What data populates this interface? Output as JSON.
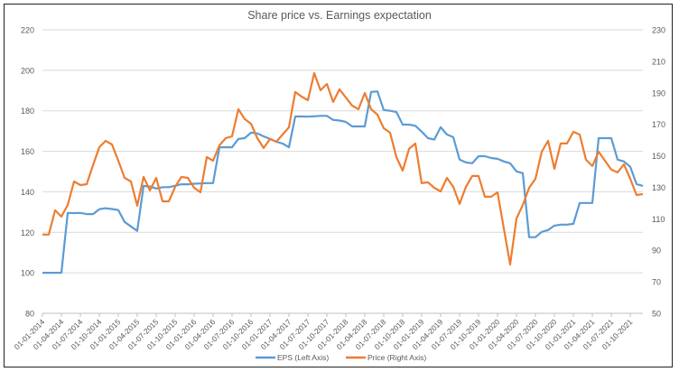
{
  "chart_data": {
    "type": "line",
    "title": "Share price vs. Earnings expectation",
    "left_axis": {
      "min": 80,
      "max": 220,
      "step": 20,
      "ticks": [
        "80",
        "100",
        "120",
        "140",
        "160",
        "180",
        "200",
        "220"
      ]
    },
    "right_axis": {
      "min": 50,
      "max": 230,
      "step": 20,
      "ticks": [
        "50",
        "70",
        "90",
        "110",
        "130",
        "150",
        "170",
        "190",
        "210",
        "230"
      ]
    },
    "grid": true,
    "legend_position": "bottom",
    "x_ticks": [
      "01-01-2014",
      "01-04-2014",
      "01-07-2014",
      "01-10-2014",
      "01-01-2015",
      "01-04-2015",
      "01-07-2015",
      "01-10-2015",
      "01-01-2016",
      "01-04-2016",
      "01-07-2016",
      "01-10-2016",
      "01-01-2017",
      "01-04-2017",
      "01-07-2017",
      "01-10-2017",
      "01-01-2018",
      "01-04-2018",
      "01-07-2018",
      "01-10-2018",
      "01-01-2019",
      "01-04-2019",
      "01-07-2019",
      "01-10-2019",
      "01-01-2020",
      "01-04-2020",
      "01-07-2020",
      "01-10-2020",
      "01-01-2021",
      "01-04-2021",
      "01-07-2021",
      "01-10-2021"
    ],
    "x": [
      "01-01-2014",
      "01-02-2014",
      "01-03-2014",
      "01-04-2014",
      "01-05-2014",
      "01-06-2014",
      "01-07-2014",
      "01-08-2014",
      "01-09-2014",
      "01-10-2014",
      "01-11-2014",
      "01-12-2014",
      "01-01-2015",
      "01-02-2015",
      "01-03-2015",
      "01-04-2015",
      "01-05-2015",
      "01-06-2015",
      "01-07-2015",
      "01-08-2015",
      "01-09-2015",
      "01-10-2015",
      "01-11-2015",
      "01-12-2015",
      "01-01-2016",
      "01-02-2016",
      "01-03-2016",
      "01-04-2016",
      "01-05-2016",
      "01-06-2016",
      "01-07-2016",
      "01-08-2016",
      "01-09-2016",
      "01-10-2016",
      "01-11-2016",
      "01-12-2016",
      "01-01-2017",
      "01-02-2017",
      "01-03-2017",
      "01-04-2017",
      "01-05-2017",
      "01-06-2017",
      "01-07-2017",
      "01-08-2017",
      "01-09-2017",
      "01-10-2017",
      "01-11-2017",
      "01-12-2017",
      "01-01-2018",
      "01-02-2018",
      "01-03-2018",
      "01-04-2018",
      "01-05-2018",
      "01-06-2018",
      "01-07-2018",
      "01-08-2018",
      "01-09-2018",
      "01-10-2018",
      "01-11-2018",
      "01-12-2018",
      "01-01-2019",
      "01-02-2019",
      "01-03-2019",
      "01-04-2019",
      "01-05-2019",
      "01-06-2019",
      "01-07-2019",
      "01-08-2019",
      "01-09-2019",
      "01-10-2019",
      "01-11-2019",
      "01-12-2019",
      "01-01-2020",
      "01-02-2020",
      "01-03-2020",
      "01-04-2020",
      "01-05-2020",
      "01-06-2020",
      "01-07-2020",
      "01-08-2020",
      "01-09-2020",
      "01-10-2020",
      "01-11-2020",
      "01-12-2020",
      "01-01-2021",
      "01-02-2021",
      "01-03-2021",
      "01-04-2021",
      "01-05-2021",
      "01-06-2021",
      "01-07-2021",
      "01-08-2021",
      "01-09-2021",
      "01-10-2021",
      "01-11-2021",
      "01-12-2021"
    ],
    "series": [
      {
        "name": "EPS (Left Axis)",
        "axis": "left",
        "color": "#5B9BD5",
        "values": [
          100,
          100,
          100,
          100,
          129.6,
          129.5,
          129.6,
          129,
          129,
          131.4,
          131.9,
          131.5,
          131,
          125.1,
          122.9,
          120.7,
          142.9,
          142.6,
          141.6,
          142.3,
          142.3,
          143,
          143.7,
          143.7,
          144,
          144.1,
          144.3,
          144.3,
          162,
          162,
          162,
          166.1,
          166.5,
          169.2,
          168.8,
          167.4,
          166.1,
          164.7,
          163.8,
          162,
          177.2,
          177.2,
          177.1,
          177.3,
          177.5,
          177.5,
          175.5,
          175.2,
          174.5,
          172.3,
          172.3,
          172.3,
          189.3,
          189.6,
          180.4,
          180,
          179.4,
          173.2,
          173.2,
          172.6,
          169.7,
          166.5,
          165.8,
          171.9,
          168.3,
          167,
          155.9,
          154.5,
          154.1,
          157.6,
          157.6,
          156.7,
          156.3,
          155,
          154.1,
          150.1,
          149.2,
          117.6,
          117.6,
          120.2,
          121.1,
          123.3,
          123.8,
          123.8,
          124.2,
          134.5,
          134.5,
          134.5,
          166.5,
          166.5,
          166.5,
          155.9,
          155,
          152.3,
          143.8,
          142.9
        ]
      },
      {
        "name": "Price (Right Axis)",
        "axis": "right",
        "color": "#ED7D31",
        "values": [
          100,
          100,
          115.4,
          111.4,
          118.8,
          133.7,
          131.4,
          132,
          144,
          155.5,
          159.5,
          157.2,
          146.9,
          136,
          133.7,
          118.3,
          136.6,
          128,
          136,
          121.1,
          121.1,
          130.3,
          136.6,
          136,
          129.7,
          126.8,
          149.2,
          146.9,
          156.6,
          161.2,
          162.4,
          179.6,
          173.3,
          170.4,
          161.2,
          154.9,
          160.7,
          158.9,
          163.5,
          168.1,
          190.5,
          187.6,
          185.3,
          202.5,
          191.6,
          195.6,
          184.2,
          192.2,
          187,
          181.9,
          179.6,
          189.9,
          179.6,
          176.1,
          167.5,
          164.7,
          149.2,
          140.6,
          154.4,
          157.8,
          132.6,
          133.2,
          129.7,
          127.4,
          136,
          130.3,
          119.4,
          130.3,
          137.2,
          137.2,
          124,
          124,
          126.8,
          103.9,
          81,
          110.2,
          118.8,
          129.7,
          135.4,
          152.6,
          159.5,
          141.7,
          157.8,
          157.8,
          165.2,
          163.5,
          147.5,
          143.5,
          152.6,
          146.9,
          141.2,
          139.5,
          144.6,
          135.4,
          125.1,
          125.7
        ]
      }
    ]
  }
}
